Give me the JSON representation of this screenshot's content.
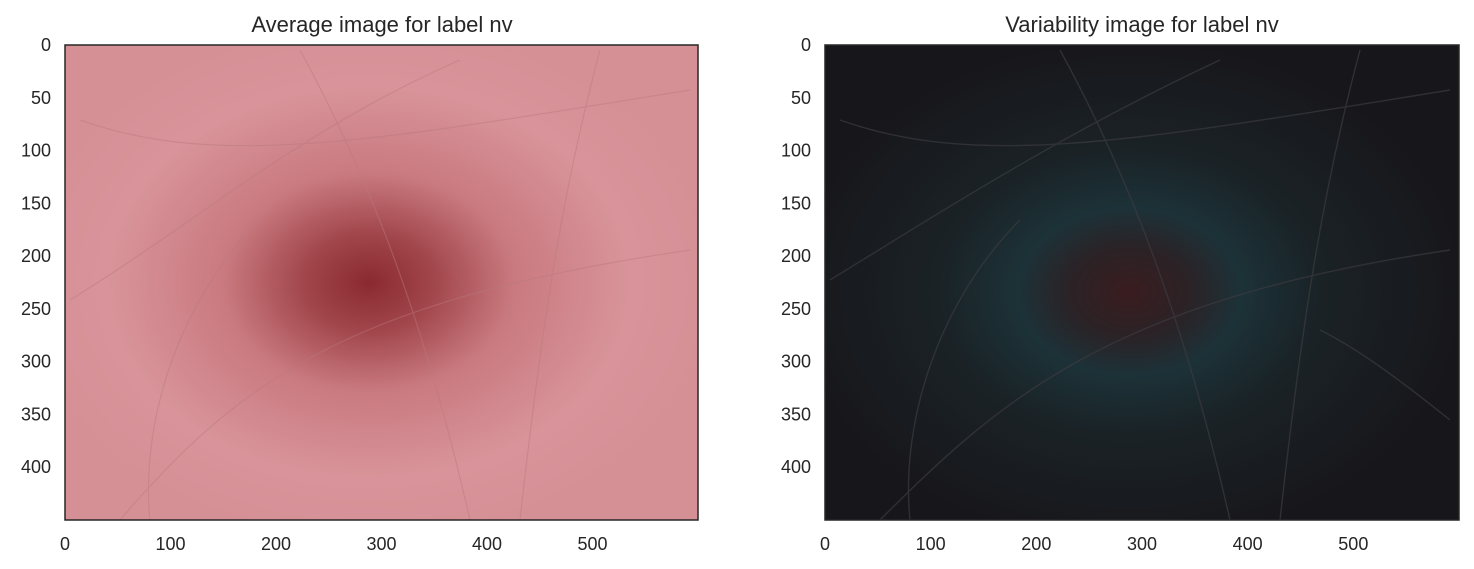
{
  "chart_data": [
    {
      "type": "image",
      "title": "Average image for label nv",
      "xlabel": "",
      "ylabel": "",
      "xlim": [
        0,
        600
      ],
      "ylim": [
        450,
        0
      ],
      "xticks": [
        0,
        100,
        200,
        300,
        400,
        500
      ],
      "yticks": [
        0,
        50,
        100,
        150,
        200,
        250,
        300,
        350,
        400
      ],
      "image_shape": [
        450,
        600
      ],
      "center": [
        300,
        235
      ],
      "background_color": "#d8949a",
      "center_color": "#8a2a30",
      "grid": false
    },
    {
      "type": "image",
      "title": "Variability image for label nv",
      "xlabel": "",
      "ylabel": "",
      "xlim": [
        0,
        600
      ],
      "ylim": [
        450,
        0
      ],
      "xticks": [
        0,
        100,
        200,
        300,
        400,
        500
      ],
      "yticks": [
        0,
        50,
        100,
        150,
        200,
        250,
        300,
        350,
        400
      ],
      "image_shape": [
        450,
        600
      ],
      "center": [
        310,
        240
      ],
      "background_color": "#17161a",
      "ring_color": "#1c3238",
      "center_color": "#3a1c1f",
      "grid": false
    }
  ]
}
